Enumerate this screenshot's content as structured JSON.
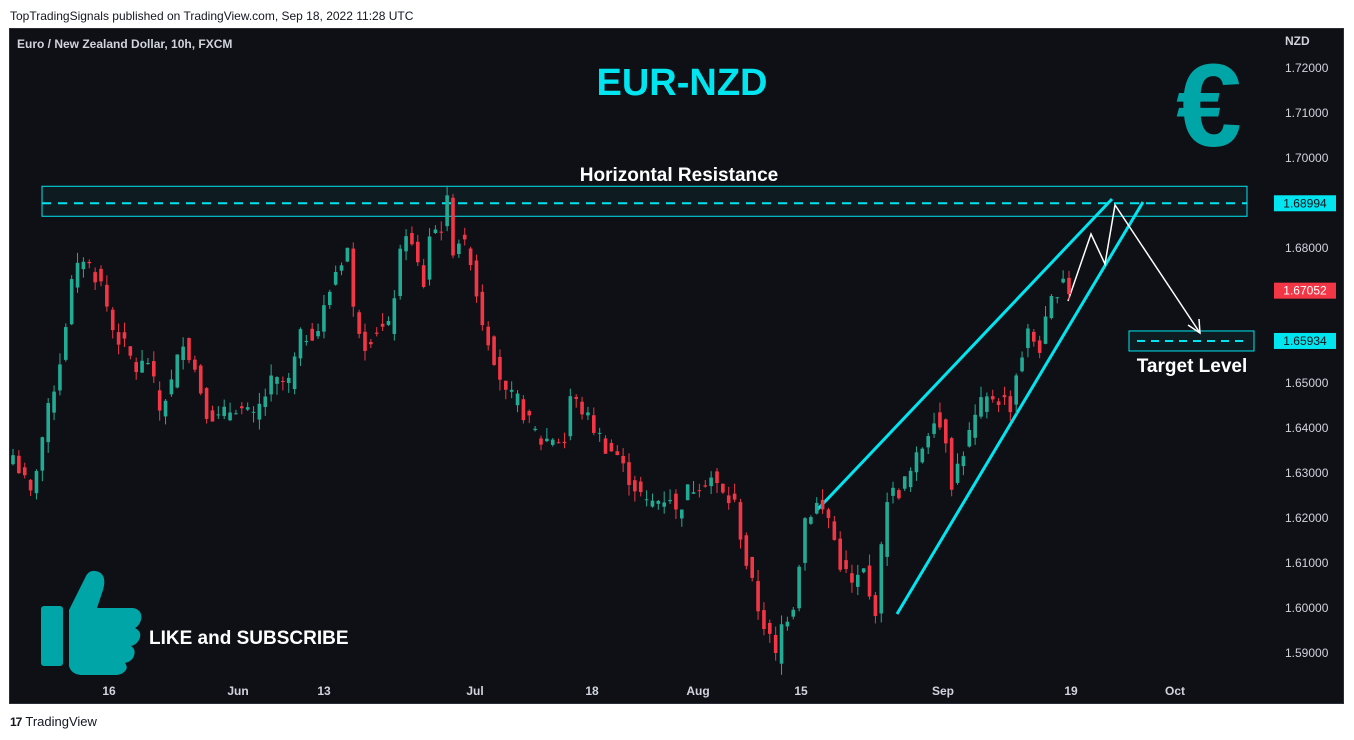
{
  "header": {
    "published_text": "TopTradingSignals published on TradingView.com, Sep 18, 2022 11:28 UTC"
  },
  "footer": {
    "brand_logo": "17",
    "brand_name": "TradingView"
  },
  "chart_data": {
    "type": "candlestick",
    "symbol_label": "Euro / New Zealand Dollar, 10h, FXCM",
    "title": "EUR-NZD",
    "currency": "NZD",
    "y_range": [
      1.584,
      1.727
    ],
    "y_ticks": [
      "1.72000",
      "1.71000",
      "1.70000",
      "1.69000",
      "1.68000",
      "1.67000",
      "1.66000",
      "1.65000",
      "1.64000",
      "1.63000",
      "1.62000",
      "1.61000",
      "1.60000",
      "1.59000"
    ],
    "x_ticks": [
      "16",
      "Jun",
      "13",
      "Jul",
      "18",
      "Aug",
      "15",
      "Sep",
      "19",
      "Oct"
    ],
    "price_labels": {
      "resistance": "1.68994",
      "current": "1.67052",
      "target": "1.65934"
    },
    "annotations": {
      "resistance_label": "Horizontal Resistance",
      "target_label": "Target Level",
      "cta_text": "LIKE and SUBSCRIBE",
      "euro_symbol": "€"
    },
    "colors": {
      "background": "#0f1016",
      "bull": "#22ab94",
      "bear": "#f23645",
      "accent": "#00e5f0",
      "euro_icon": "#00a5a8",
      "thumb_icon": "#00a5a8",
      "current_price_badge": "#f23645",
      "level_badge": "#00e5f0"
    },
    "anchor_closes": [
      [
        0,
        1.634
      ],
      [
        3,
        1.625
      ],
      [
        5,
        1.638
      ],
      [
        8,
        1.655
      ],
      [
        10,
        1.672
      ],
      [
        12,
        1.678
      ],
      [
        15,
        1.672
      ],
      [
        17,
        1.662
      ],
      [
        19,
        1.658
      ],
      [
        21,
        1.653
      ],
      [
        23,
        1.655
      ],
      [
        25,
        1.644
      ],
      [
        27,
        1.65
      ],
      [
        29,
        1.66
      ],
      [
        31,
        1.653
      ],
      [
        33,
        1.644
      ],
      [
        35,
        1.642
      ],
      [
        38,
        1.645
      ],
      [
        41,
        1.642
      ],
      [
        44,
        1.65
      ],
      [
        47,
        1.65
      ],
      [
        49,
        1.66
      ],
      [
        52,
        1.662
      ],
      [
        55,
        1.675
      ],
      [
        57,
        1.68
      ],
      [
        58,
        1.666
      ],
      [
        60,
        1.659
      ],
      [
        62,
        1.662
      ],
      [
        64,
        1.662
      ],
      [
        66,
        1.678
      ],
      [
        67,
        1.684
      ],
      [
        69,
        1.676
      ],
      [
        70,
        1.672
      ],
      [
        71,
        1.683
      ],
      [
        73,
        1.685
      ],
      [
        74,
        1.69
      ],
      [
        75,
        1.68
      ],
      [
        76,
        1.682
      ],
      [
        78,
        1.678
      ],
      [
        79,
        1.67
      ],
      [
        80,
        1.664
      ],
      [
        82,
        1.656
      ],
      [
        84,
        1.647
      ],
      [
        86,
        1.646
      ],
      [
        88,
        1.641
      ],
      [
        90,
        1.637
      ],
      [
        92,
        1.638
      ],
      [
        94,
        1.637
      ],
      [
        95,
        1.647
      ],
      [
        97,
        1.644
      ],
      [
        99,
        1.64
      ],
      [
        101,
        1.636
      ],
      [
        103,
        1.634
      ],
      [
        104,
        1.631
      ],
      [
        106,
        1.627
      ],
      [
        108,
        1.623
      ],
      [
        110,
        1.624
      ],
      [
        112,
        1.625
      ],
      [
        113,
        1.621
      ],
      [
        115,
        1.626
      ],
      [
        117,
        1.628
      ],
      [
        119,
        1.629
      ],
      [
        121,
        1.625
      ],
      [
        123,
        1.623
      ],
      [
        125,
        1.61
      ],
      [
        127,
        1.6
      ],
      [
        129,
        1.593
      ],
      [
        130,
        1.589
      ],
      [
        131,
        1.596
      ],
      [
        133,
        1.601
      ],
      [
        135,
        1.62
      ],
      [
        137,
        1.623
      ],
      [
        139,
        1.62
      ],
      [
        141,
        1.61
      ],
      [
        143,
        1.605
      ],
      [
        145,
        1.608
      ],
      [
        146,
        1.602
      ],
      [
        147,
        1.6
      ],
      [
        149,
        1.625
      ],
      [
        151,
        1.626
      ],
      [
        153,
        1.63
      ],
      [
        155,
        1.636
      ],
      [
        157,
        1.643
      ],
      [
        159,
        1.638
      ],
      [
        160,
        1.628
      ],
      [
        162,
        1.635
      ],
      [
        164,
        1.642
      ],
      [
        165,
        1.645
      ],
      [
        167,
        1.647
      ],
      [
        169,
        1.646
      ],
      [
        170,
        1.645
      ],
      [
        171,
        1.652
      ],
      [
        173,
        1.661
      ],
      [
        175,
        1.658
      ],
      [
        177,
        1.668
      ],
      [
        179,
        1.674
      ],
      [
        180,
        1.6705
      ]
    ]
  }
}
